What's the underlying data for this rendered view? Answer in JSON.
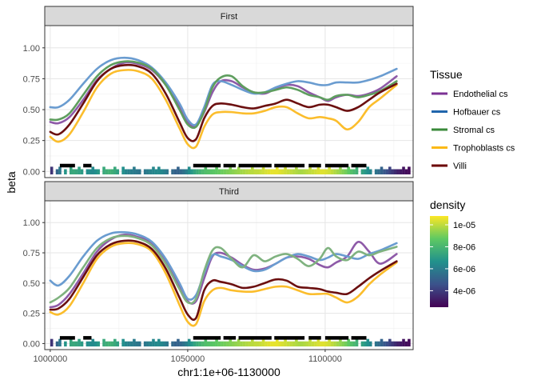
{
  "chart_data": {
    "type": "line",
    "xlabel": "chr1:1e+06-1130000",
    "ylabel": "beta",
    "xlim": [
      998000,
      1132000
    ],
    "ylim": [
      -0.05,
      1.18
    ],
    "x_ticks": [
      1000000,
      1050000,
      1100000
    ],
    "x_tick_labels": [
      "1000000",
      "1050000",
      "1100000"
    ],
    "y_ticks": [
      0,
      0.25,
      0.5,
      0.75,
      1
    ],
    "y_tick_labels": [
      "0.00",
      "0.25",
      "0.50",
      "0.75",
      "1.00"
    ],
    "grid": true,
    "legend_position": "right",
    "legend": {
      "tissue_title": "Tissue",
      "tissue_items": [
        {
          "label": "Endothelial cs",
          "color": "#7b3294"
        },
        {
          "label": "Hofbauer cs",
          "color": "#2166ac"
        },
        {
          "label": "Stromal cs",
          "color": "#3a8a3a"
        },
        {
          "label": "Trophoblasts cs",
          "color": "#fbb917"
        },
        {
          "label": "Villi",
          "color": "#6b0000"
        }
      ],
      "density_title": "density",
      "density_labels": [
        "1e-05",
        "8e-06",
        "6e-06",
        "4e-06"
      ],
      "density_values": [
        1e-05,
        8e-06,
        6e-06,
        4e-06
      ],
      "density_range": [
        2.5e-06,
        1.08e-05
      ]
    },
    "x_sample": [
      1000000,
      1003000,
      1007000,
      1012000,
      1017000,
      1022000,
      1027000,
      1032000,
      1037000,
      1042000,
      1047000,
      1050000,
      1053000,
      1056000,
      1059000,
      1062000,
      1066000,
      1070000,
      1074000,
      1078000,
      1082000,
      1086000,
      1090000,
      1094000,
      1098000,
      1101000,
      1104000,
      1108000,
      1112000,
      1116000,
      1120000,
      1126000
    ],
    "panels": [
      {
        "label": "First",
        "series": [
          {
            "name": "Endothelial cs",
            "color": "#8e5aa8",
            "values": [
              0.4,
              0.39,
              0.44,
              0.58,
              0.74,
              0.83,
              0.88,
              0.87,
              0.82,
              0.7,
              0.52,
              0.4,
              0.37,
              0.48,
              0.64,
              0.73,
              0.73,
              0.68,
              0.64,
              0.63,
              0.67,
              0.7,
              0.69,
              0.64,
              0.6,
              0.57,
              0.6,
              0.62,
              0.61,
              0.63,
              0.67,
              0.77
            ]
          },
          {
            "name": "Hofbauer cs",
            "color": "#6a9cd0",
            "values": [
              0.52,
              0.52,
              0.58,
              0.71,
              0.83,
              0.9,
              0.92,
              0.9,
              0.84,
              0.72,
              0.55,
              0.42,
              0.38,
              0.52,
              0.7,
              0.73,
              0.7,
              0.66,
              0.63,
              0.64,
              0.68,
              0.71,
              0.73,
              0.72,
              0.7,
              0.7,
              0.72,
              0.72,
              0.72,
              0.74,
              0.77,
              0.83
            ]
          },
          {
            "name": "Stromal cs",
            "color": "#5e9e5e",
            "values": [
              0.42,
              0.42,
              0.47,
              0.62,
              0.77,
              0.86,
              0.89,
              0.88,
              0.83,
              0.7,
              0.5,
              0.38,
              0.36,
              0.49,
              0.68,
              0.76,
              0.77,
              0.69,
              0.64,
              0.64,
              0.66,
              0.68,
              0.66,
              0.62,
              0.6,
              0.58,
              0.61,
              0.62,
              0.6,
              0.62,
              0.65,
              0.73
            ]
          },
          {
            "name": "Trophoblasts cs",
            "color": "#fbbd2c",
            "values": [
              0.28,
              0.24,
              0.3,
              0.48,
              0.68,
              0.79,
              0.82,
              0.81,
              0.75,
              0.58,
              0.35,
              0.22,
              0.2,
              0.36,
              0.46,
              0.48,
              0.48,
              0.47,
              0.47,
              0.49,
              0.52,
              0.52,
              0.47,
              0.43,
              0.44,
              0.43,
              0.41,
              0.34,
              0.4,
              0.52,
              0.59,
              0.7
            ]
          },
          {
            "name": "Villi",
            "color": "#6b0f0f",
            "values": [
              0.32,
              0.3,
              0.38,
              0.55,
              0.73,
              0.83,
              0.86,
              0.85,
              0.79,
              0.63,
              0.4,
              0.27,
              0.26,
              0.43,
              0.53,
              0.55,
              0.54,
              0.52,
              0.51,
              0.53,
              0.55,
              0.58,
              0.55,
              0.52,
              0.54,
              0.54,
              0.52,
              0.49,
              0.52,
              0.58,
              0.64,
              0.71
            ]
          }
        ]
      },
      {
        "label": "Third",
        "series": [
          {
            "name": "Endothelial cs",
            "color": "#8e5aa8",
            "values": [
              0.3,
              0.32,
              0.41,
              0.58,
              0.76,
              0.86,
              0.9,
              0.88,
              0.83,
              0.69,
              0.48,
              0.35,
              0.35,
              0.54,
              0.72,
              0.75,
              0.71,
              0.65,
              0.61,
              0.62,
              0.66,
              0.71,
              0.72,
              0.7,
              0.65,
              0.63,
              0.67,
              0.72,
              0.84,
              0.76,
              0.66,
              0.74
            ]
          },
          {
            "name": "Hofbauer cs",
            "color": "#6a9cd0",
            "values": [
              0.52,
              0.48,
              0.56,
              0.72,
              0.85,
              0.91,
              0.92,
              0.9,
              0.84,
              0.7,
              0.5,
              0.37,
              0.4,
              0.58,
              0.73,
              0.72,
              0.69,
              0.64,
              0.6,
              0.61,
              0.66,
              0.71,
              0.74,
              0.72,
              0.69,
              0.71,
              0.74,
              0.72,
              0.7,
              0.74,
              0.77,
              0.83
            ]
          },
          {
            "name": "Stromal cs",
            "color": "#7fb27f",
            "values": [
              0.34,
              0.38,
              0.46,
              0.63,
              0.79,
              0.87,
              0.89,
              0.87,
              0.81,
              0.66,
              0.45,
              0.34,
              0.37,
              0.6,
              0.77,
              0.79,
              0.7,
              0.63,
              0.73,
              0.68,
              0.72,
              0.74,
              0.7,
              0.64,
              0.7,
              0.79,
              0.72,
              0.69,
              0.76,
              0.73,
              0.76,
              0.8
            ]
          },
          {
            "name": "Trophoblasts cs",
            "color": "#fbbd2c",
            "values": [
              0.26,
              0.24,
              0.31,
              0.5,
              0.7,
              0.8,
              0.83,
              0.82,
              0.76,
              0.58,
              0.32,
              0.18,
              0.16,
              0.35,
              0.44,
              0.46,
              0.44,
              0.43,
              0.43,
              0.45,
              0.47,
              0.47,
              0.44,
              0.41,
              0.41,
              0.41,
              0.38,
              0.34,
              0.39,
              0.49,
              0.57,
              0.67
            ]
          },
          {
            "name": "Villi",
            "color": "#6b0f0f",
            "values": [
              0.28,
              0.29,
              0.37,
              0.55,
              0.73,
              0.82,
              0.85,
              0.84,
              0.78,
              0.62,
              0.38,
              0.24,
              0.21,
              0.44,
              0.52,
              0.51,
              0.49,
              0.46,
              0.47,
              0.5,
              0.53,
              0.52,
              0.47,
              0.46,
              0.45,
              0.43,
              0.42,
              0.41,
              0.47,
              0.54,
              0.6,
              0.68
            ]
          }
        ]
      }
    ],
    "dmr_regions": [
      [
        1003500,
        1009000
      ],
      [
        1012000,
        1015000
      ],
      [
        1052000,
        1062000
      ],
      [
        1063000,
        1067500
      ],
      [
        1068500,
        1080500
      ],
      [
        1081500,
        1092500
      ],
      [
        1094000,
        1098500
      ],
      [
        1100000,
        1108500
      ],
      [
        1109500,
        1115000
      ]
    ],
    "rug": {
      "x_start": 1000000,
      "x_end": 1130000,
      "step": 1000,
      "density": [
        3.8e-06,
        4.5e-06,
        5.2e-06,
        5.8e-06,
        6.3e-06,
        6.8e-06,
        7.1e-06,
        7.4e-06,
        7.5e-06,
        7.4e-06,
        7.2e-06,
        7e-06,
        6.8e-06,
        6.6e-06,
        6.5e-06,
        6.4e-06,
        6.6e-06,
        6.9e-06,
        7.2e-06,
        7.5e-06,
        7.7e-06,
        7.8e-06,
        7.7e-06,
        7.5e-06,
        7.2e-06,
        6.9e-06,
        6.6e-06,
        6.3e-06,
        6.1e-06,
        6e-06,
        5.9e-06,
        5.8e-06,
        5.7e-06,
        5.7e-06,
        5.8e-06,
        6e-06,
        6.2e-06,
        6.3e-06,
        6.4e-06,
        6.4e-06,
        6.3e-06,
        6.1e-06,
        5.8e-06,
        5.5e-06,
        5.3e-06,
        5.1e-06,
        5.1e-06,
        5.3e-06,
        5.6e-06,
        6e-06,
        6.5e-06,
        6.9e-06,
        7.3e-06,
        7.6e-06,
        7.9e-06,
        8.1e-06,
        8.3e-06,
        8.4e-06,
        8.5e-06,
        8.6e-06,
        8.7e-06,
        8.8e-06,
        8.9e-06,
        9e-06,
        9.1e-06,
        9.2e-06,
        9.3e-06,
        9.4e-06,
        9.5e-06,
        9.6e-06,
        9.7e-06,
        9.8e-06,
        9.9e-06,
        9.9e-06,
        1e-05,
        1e-05,
        1.01e-05,
        1.02e-05,
        1.03e-05,
        1.04e-05,
        1.05e-05,
        1.05e-05,
        1.05e-05,
        1.04e-05,
        1.03e-05,
        1.02e-05,
        1.01e-05,
        1e-05,
        9.9e-06,
        9.8e-06,
        9.7e-06,
        9.7e-06,
        9.8e-06,
        9.9e-06,
        1e-05,
        1.01e-05,
        1.02e-05,
        1.03e-05,
        1.04e-05,
        1.04e-05,
        1.03e-05,
        1.02e-05,
        1e-05,
        9.8e-06,
        9.6e-06,
        9.4e-06,
        9.2e-06,
        9e-06,
        8.7e-06,
        8.4e-06,
        8.1e-06,
        7.8e-06,
        7.5e-06,
        7.2e-06,
        6.9e-06,
        6.6e-06,
        6.3e-06,
        6e-06,
        5.7e-06,
        5.4e-06,
        5.1e-06,
        4.8e-06,
        4.5e-06,
        4.2e-06,
        3.9e-06,
        3.6e-06,
        3.3e-06,
        3.1e-06,
        2.9e-06,
        2.8e-06,
        2.7e-06
      ],
      "present": [
        1,
        0,
        1,
        1,
        0,
        1,
        0,
        1,
        1,
        1,
        1,
        1,
        0,
        1,
        1,
        1,
        1,
        1,
        0,
        1,
        1,
        1,
        1,
        1,
        1,
        0,
        1,
        1,
        1,
        1,
        1,
        1,
        1,
        0,
        1,
        1,
        1,
        1,
        1,
        1,
        1,
        1,
        1,
        0,
        1,
        1,
        1,
        1,
        1,
        1,
        1,
        1,
        1,
        1,
        1,
        1,
        1,
        1,
        1,
        1,
        1,
        1,
        1,
        1,
        1,
        1,
        1,
        1,
        1,
        1,
        1,
        1,
        1,
        1,
        1,
        1,
        1,
        1,
        1,
        1,
        1,
        1,
        1,
        1,
        1,
        1,
        1,
        1,
        1,
        1,
        1,
        1,
        1,
        1,
        1,
        1,
        1,
        1,
        1,
        1,
        1,
        1,
        1,
        1,
        1,
        1,
        1,
        1,
        1,
        1,
        1,
        1,
        0,
        1,
        1,
        1,
        1,
        0,
        1,
        1,
        1,
        1,
        1,
        1,
        1,
        1,
        1,
        1,
        1,
        1,
        1
      ],
      "tall": [
        1,
        0,
        0,
        1,
        0,
        0,
        0,
        1,
        0,
        0,
        1,
        0,
        0,
        0,
        0,
        1,
        0,
        0,
        0,
        1,
        0,
        0,
        0,
        1,
        0,
        0,
        1,
        0,
        0,
        0,
        1,
        0,
        0,
        1,
        0,
        0,
        0,
        1,
        0,
        1,
        0,
        0,
        0,
        1,
        0,
        0,
        1,
        0,
        0,
        0,
        1,
        0,
        0,
        0,
        0,
        0,
        1,
        0,
        0,
        0,
        1,
        0,
        0,
        0,
        0,
        1,
        0,
        0,
        1,
        0,
        0,
        0,
        0,
        1,
        0,
        0,
        0,
        1,
        0,
        0,
        0,
        0,
        1,
        0,
        0,
        1,
        0,
        0,
        0,
        1,
        0,
        0,
        0,
        0,
        1,
        0,
        0,
        1,
        0,
        0,
        0,
        1,
        0,
        0,
        0,
        1,
        0,
        0,
        1,
        0,
        0,
        1,
        0,
        0,
        0,
        1,
        0,
        1,
        0,
        0,
        1,
        0,
        0,
        1,
        0,
        0,
        0,
        0,
        1,
        0,
        1
      ]
    }
  }
}
